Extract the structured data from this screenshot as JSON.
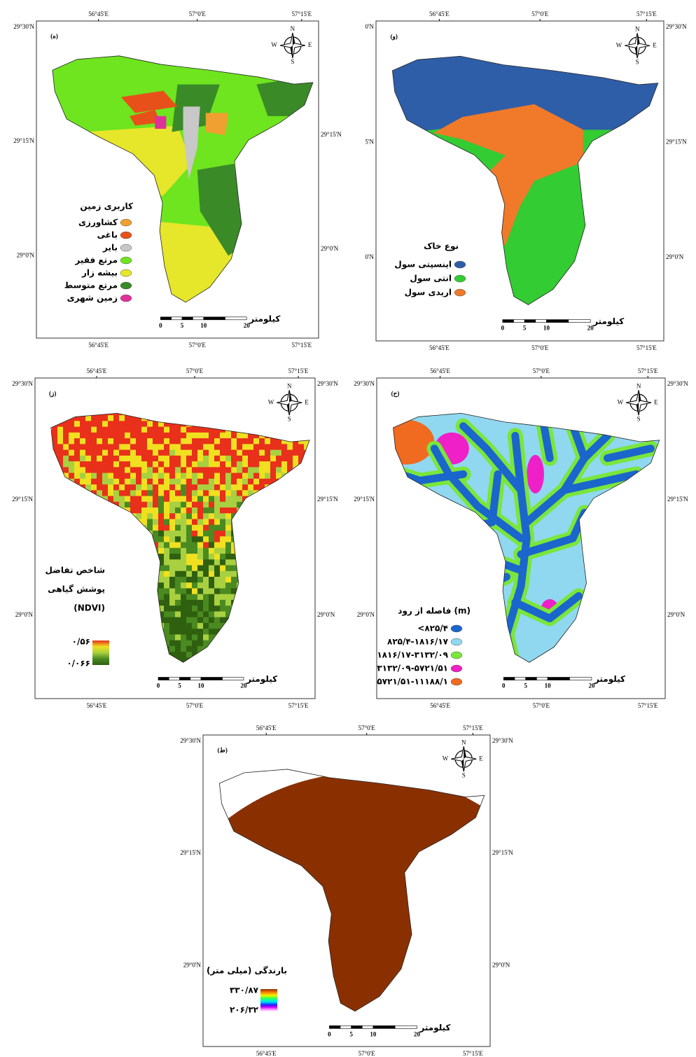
{
  "longitudes": [
    "56°45'E",
    "57°0'E",
    "57°15'E"
  ],
  "compass": {
    "north": "N",
    "east": "E",
    "south": "S",
    "west": "W"
  },
  "scale_bar": {
    "ticks": [
      "0",
      "5",
      "10",
      "20"
    ],
    "unit": "کیلومتر"
  },
  "maps": [
    {
      "label": "(ه)",
      "lat_left": [
        "29°30'N",
        "29°15'N",
        "29°0'N"
      ],
      "lat_right": [
        "29°15'N",
        "29°0'N"
      ],
      "legend": {
        "title": "کاربری زمین",
        "items": [
          {
            "label": "کشاورزی",
            "color": "#f0a030"
          },
          {
            "label": "باغی",
            "color": "#e8501a"
          },
          {
            "label": "بایر",
            "color": "#c8c8c8"
          },
          {
            "label": "مرتع فقیر",
            "color": "#6ee51e"
          },
          {
            "label": "بیشه زار",
            "color": "#e6e62a"
          },
          {
            "label": "مرتع متوسط",
            "color": "#3a8a28"
          },
          {
            "label": "زمین شهری",
            "color": "#e0309a"
          }
        ]
      }
    },
    {
      "label": "(و)",
      "lat_left": [
        "0'N",
        "5'N",
        "0'N"
      ],
      "lat_right": [
        "29°30'N",
        "29°15'N",
        "29°0'N"
      ],
      "legend": {
        "title": "نوع خاک",
        "items": [
          {
            "label": "اینسپتی سول",
            "color": "#2f5ea8"
          },
          {
            "label": "انتی سول",
            "color": "#33cc33"
          },
          {
            "label": "اریدی سول",
            "color": "#f07a2a"
          }
        ]
      }
    },
    {
      "label": "(ز)",
      "lat_left": [
        "29°30'N",
        "29°15'N",
        "29°0'N"
      ],
      "lat_right": [
        "29°30'N",
        "29°15'N",
        "29°0'N"
      ],
      "legend": {
        "title_lines": [
          "شاخص تفاضل",
          "پوشش گیاهی",
          "(NDVI)"
        ],
        "high": "۰/۵۶",
        "low": "۰/۰۶۶",
        "colors": [
          "#e8301a",
          "#f0e020",
          "#a8d040",
          "#4a8a20",
          "#2f6010"
        ]
      }
    },
    {
      "label": "(ح)",
      "lat_left": [
        "29°30'N",
        "29°15'N",
        "29°0'N"
      ],
      "lat_right": [
        "29°30'N",
        "29°15'N",
        "29°0'N"
      ],
      "legend": {
        "title": "فاصله از رود (m)",
        "items": [
          {
            "label": "<۸۲۵/۴",
            "color": "#1a66cc"
          },
          {
            "label": "۸۲۵/۴-۱۸۱۶/۱۷",
            "color": "#8fd8f0"
          },
          {
            "label": "۱۸۱۶/۱۷-۳۱۳۲/۰۹",
            "color": "#7ae63a"
          },
          {
            "label": "۳۱۳۲/۰۹-۵۷۲۱/۵۱",
            "color": "#f020c8"
          },
          {
            "label": "۵۷۲۱/۵۱-۱۱۱۸۸/۱",
            "color": "#f06a20"
          }
        ]
      }
    },
    {
      "label": "(ط)",
      "lat_left": [
        "29°30'N",
        "29°15'N",
        "29°0'N"
      ],
      "lat_right": [
        "29°30'N",
        "29°15'N",
        "29°0'N"
      ],
      "legend": {
        "title_lines": [
          "بارندگی (میلی متر)"
        ],
        "high": "۳۳۰/۸۷",
        "low": "۲۰۶/۳۲",
        "colors": [
          "#8a3000",
          "#e06000",
          "#ffb000",
          "#e0ff00",
          "#40ff40",
          "#00ffc0",
          "#00c0ff",
          "#2020ff",
          "#c000ff",
          "#ff80ff",
          "#ffffff"
        ]
      }
    }
  ]
}
